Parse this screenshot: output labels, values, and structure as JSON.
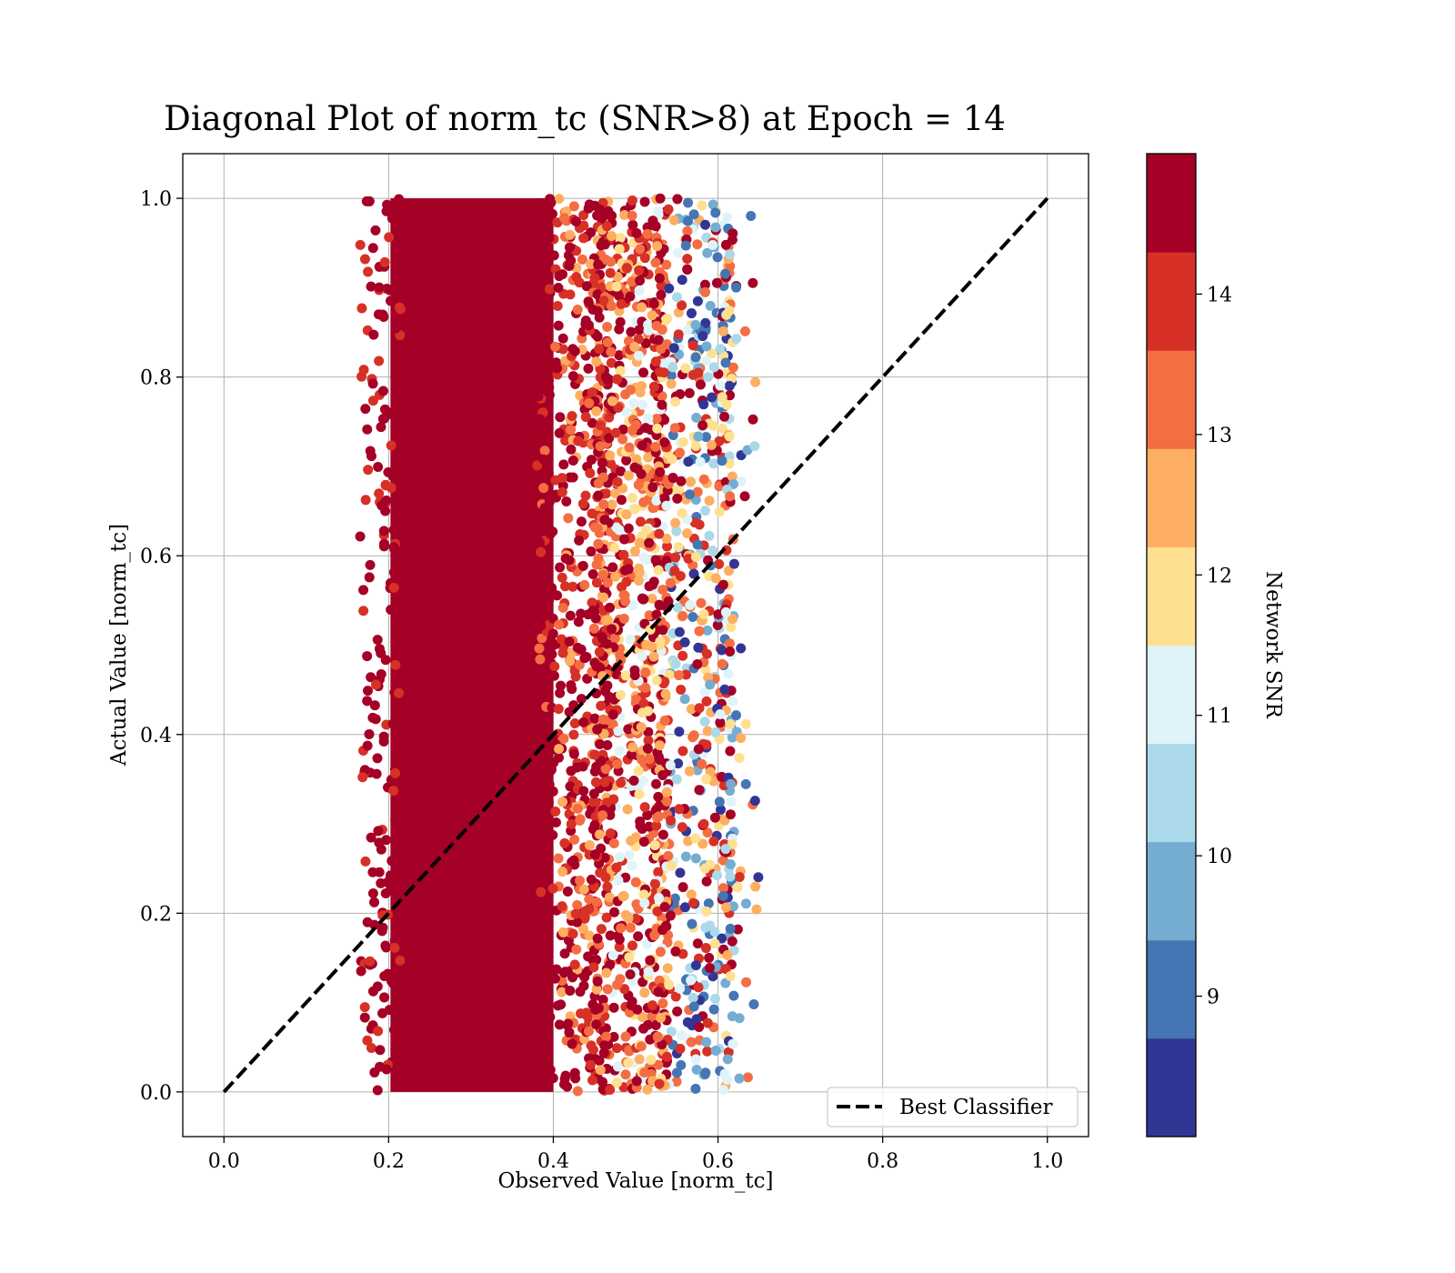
{
  "chart_data": {
    "type": "scatter",
    "title": "Diagonal Plot of norm_tc (SNR>8) at Epoch = 14",
    "xlabel": "Observed Value [norm_tc]",
    "ylabel": "Actual Value [norm_tc]",
    "xlim": [
      -0.05,
      1.05
    ],
    "ylim": [
      -0.05,
      1.05
    ],
    "xticks": [
      0.0,
      0.2,
      0.4,
      0.6,
      0.8,
      1.0
    ],
    "yticks": [
      0.0,
      0.2,
      0.4,
      0.6,
      0.8,
      1.0
    ],
    "xtick_labels": [
      "0.0",
      "0.2",
      "0.4",
      "0.6",
      "0.8",
      "1.0"
    ],
    "ytick_labels": [
      "0.0",
      "0.2",
      "0.4",
      "0.6",
      "0.8",
      "1.0"
    ],
    "grid": true,
    "legend": {
      "placement": "lower right",
      "entries": [
        {
          "label": "Best Classifier",
          "style": "dashed",
          "color": "#000000"
        }
      ]
    },
    "reference_line": {
      "name": "Best Classifier",
      "x": [
        0.0,
        1.0
      ],
      "y": [
        0.0,
        1.0
      ]
    },
    "colorbar": {
      "label": "Network SNR",
      "range": [
        8,
        15
      ],
      "ticks": [
        9,
        10,
        11,
        12,
        13,
        14
      ],
      "tick_labels": [
        "9",
        "10",
        "11",
        "12",
        "13",
        "14"
      ],
      "colors": [
        "#313695",
        "#4575b4",
        "#74add1",
        "#abd9e9",
        "#e0f3f8",
        "#fee090",
        "#fdae61",
        "#f46d43",
        "#d73027",
        "#a50026"
      ]
    },
    "point_distribution": {
      "count_approx": 50000,
      "x_range": [
        0.16,
        0.65
      ],
      "y_range": [
        0.0,
        1.0
      ],
      "dense_x_range": [
        0.2,
        0.4
      ],
      "dense_color": "#a50026"
    }
  }
}
